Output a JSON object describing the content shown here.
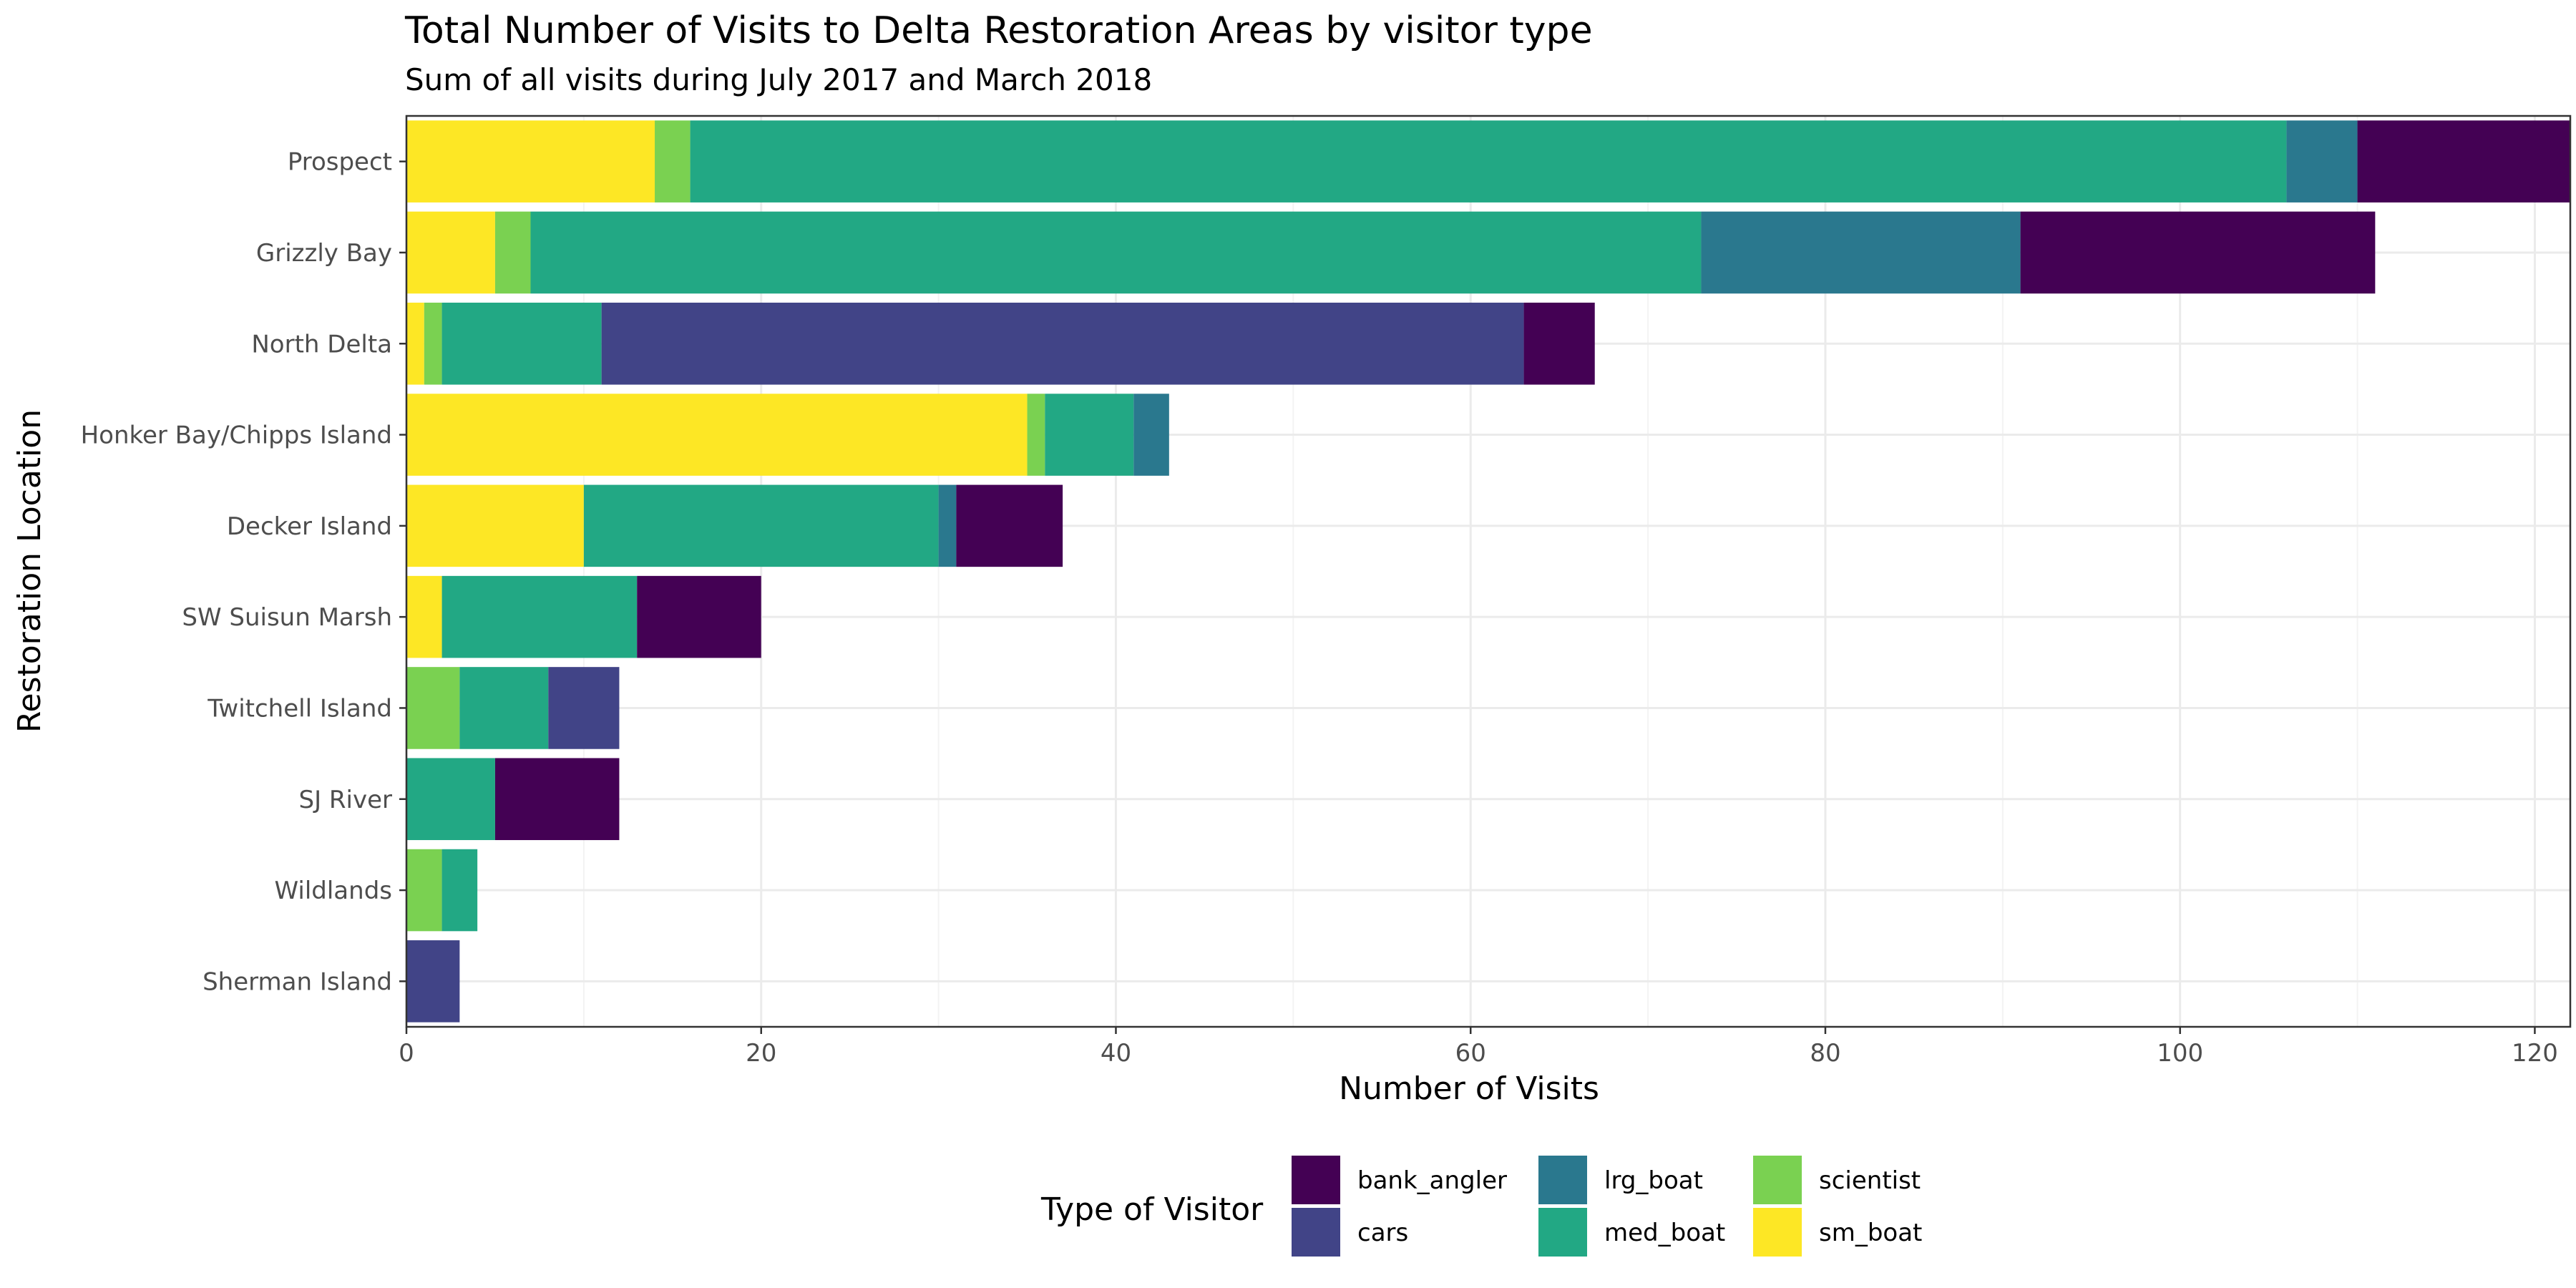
{
  "chart_data": {
    "type": "bar",
    "orientation": "horizontal",
    "stacked": true,
    "title": "Total Number of Visits to Delta Restoration Areas by visitor type",
    "subtitle": "Sum of all visits during July 2017 and March 2018",
    "xlabel": "Number of Visits",
    "ylabel": "Restoration Location",
    "xlim": [
      0,
      122
    ],
    "xticks": [
      0,
      20,
      40,
      60,
      80,
      100,
      120
    ],
    "grid": true,
    "legend_position": "bottom",
    "legend_title": "Type of Visitor",
    "categories": [
      "Prospect",
      "Grizzly Bay",
      "North Delta",
      "Honker Bay/Chipps Island",
      "Decker Island",
      "SW Suisun Marsh",
      "Twitchell Island",
      "SJ River",
      "Wildlands",
      "Sherman Island"
    ],
    "stack_order": [
      "sm_boat",
      "scientist",
      "med_boat",
      "lrg_boat",
      "cars",
      "bank_angler"
    ],
    "legend_order": [
      "bank_angler",
      "cars",
      "lrg_boat",
      "med_boat",
      "scientist",
      "sm_boat"
    ],
    "series": [
      {
        "name": "bank_angler",
        "color": "#440154",
        "values": [
          12,
          20,
          4,
          0,
          6,
          7,
          0,
          7,
          0,
          0
        ]
      },
      {
        "name": "cars",
        "color": "#414487",
        "values": [
          0,
          0,
          52,
          0,
          0,
          0,
          4,
          0,
          0,
          3
        ]
      },
      {
        "name": "lrg_boat",
        "color": "#2A788E",
        "values": [
          4,
          18,
          0,
          2,
          1,
          0,
          0,
          0,
          0,
          0
        ]
      },
      {
        "name": "med_boat",
        "color": "#22A884",
        "values": [
          90,
          66,
          9,
          5,
          20,
          11,
          5,
          5,
          2,
          0
        ]
      },
      {
        "name": "scientist",
        "color": "#7AD151",
        "values": [
          2,
          2,
          1,
          1,
          0,
          0,
          3,
          0,
          2,
          0
        ]
      },
      {
        "name": "sm_boat",
        "color": "#FDE725",
        "values": [
          14,
          5,
          1,
          35,
          10,
          2,
          0,
          0,
          0,
          0
        ]
      }
    ]
  }
}
